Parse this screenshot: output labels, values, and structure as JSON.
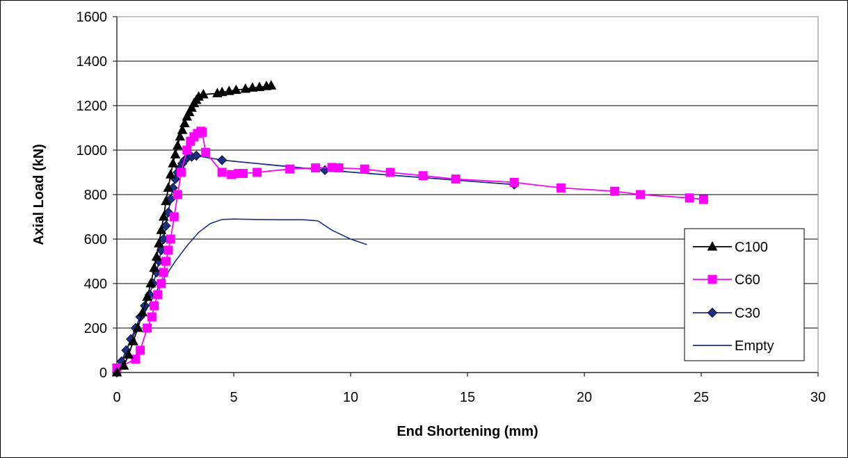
{
  "chart_data": {
    "type": "line",
    "xlabel": "End Shortening (mm)",
    "ylabel": "Axial Load (kN)",
    "xlim": [
      0,
      30
    ],
    "ylim": [
      0,
      1600
    ],
    "xticks": [
      0,
      5,
      10,
      15,
      20,
      25,
      30
    ],
    "yticks": [
      0,
      200,
      400,
      600,
      800,
      1000,
      1200,
      1400,
      1600
    ],
    "grid": "horizontal",
    "legend_position": "right",
    "series": [
      {
        "name": "C100",
        "color": "#000000",
        "marker": "triangle",
        "x": [
          0,
          0.3,
          0.5,
          0.7,
          0.9,
          1.1,
          1.3,
          1.45,
          1.6,
          1.7,
          1.8,
          1.9,
          2.0,
          2.1,
          2.2,
          2.3,
          2.4,
          2.5,
          2.6,
          2.7,
          2.8,
          2.9,
          3.0,
          3.1,
          3.2,
          3.3,
          3.4,
          3.5,
          3.7,
          4.3,
          4.5,
          4.8,
          5.1,
          5.5,
          5.8,
          6.1,
          6.4,
          6.6
        ],
        "y": [
          0,
          30,
          80,
          140,
          200,
          270,
          340,
          400,
          470,
          520,
          580,
          640,
          700,
          770,
          830,
          890,
          940,
          980,
          1020,
          1060,
          1090,
          1120,
          1150,
          1170,
          1190,
          1210,
          1225,
          1240,
          1250,
          1255,
          1260,
          1265,
          1270,
          1275,
          1280,
          1283,
          1287,
          1290
        ]
      },
      {
        "name": "C60",
        "color": "#ff00ff",
        "marker": "square",
        "x": [
          0,
          0.8,
          1.0,
          1.3,
          1.5,
          1.6,
          1.75,
          1.9,
          2.0,
          2.1,
          2.2,
          2.3,
          2.45,
          2.6,
          2.75,
          3.0,
          3.15,
          3.3,
          3.45,
          3.6,
          3.65,
          3.8,
          4.5,
          4.9,
          5.2,
          5.4,
          6.0,
          7.4,
          8.5,
          9.2,
          9.5,
          10.6,
          11.7,
          13.1,
          14.5,
          17.0,
          19.0,
          21.3,
          22.4,
          24.5,
          25.1
        ],
        "y": [
          20,
          60,
          100,
          200,
          250,
          300,
          350,
          400,
          450,
          500,
          550,
          600,
          700,
          800,
          900,
          1000,
          1040,
          1060,
          1075,
          1085,
          1080,
          990,
          900,
          890,
          895,
          895,
          900,
          915,
          920,
          922,
          920,
          915,
          900,
          885,
          870,
          855,
          830,
          815,
          800,
          785,
          778
        ]
      },
      {
        "name": "C30",
        "color": "#1c2f80",
        "marker": "diamond",
        "x": [
          0,
          0.2,
          0.4,
          0.6,
          0.8,
          1.0,
          1.2,
          1.4,
          1.55,
          1.7,
          1.8,
          1.9,
          2.0,
          2.1,
          2.2,
          2.3,
          2.4,
          2.5,
          2.6,
          2.7,
          2.8,
          2.9,
          3.0,
          3.2,
          3.4,
          4.5,
          8.9,
          17.0
        ],
        "y": [
          0,
          50,
          100,
          150,
          200,
          250,
          300,
          350,
          400,
          450,
          500,
          550,
          600,
          660,
          720,
          780,
          830,
          870,
          900,
          920,
          940,
          955,
          965,
          970,
          975,
          955,
          910,
          845
        ]
      },
      {
        "name": "Empty",
        "color": "#1c2f80",
        "marker": "none",
        "x": [
          0,
          0.5,
          1.0,
          1.5,
          2.0,
          2.5,
          3.0,
          3.5,
          4.0,
          4.5,
          5.0,
          6.0,
          7.0,
          8.0,
          8.6,
          9.2,
          10.0,
          10.7
        ],
        "y": [
          0,
          120,
          230,
          330,
          420,
          500,
          570,
          630,
          670,
          688,
          690,
          688,
          687,
          687,
          682,
          640,
          600,
          575
        ]
      }
    ]
  }
}
